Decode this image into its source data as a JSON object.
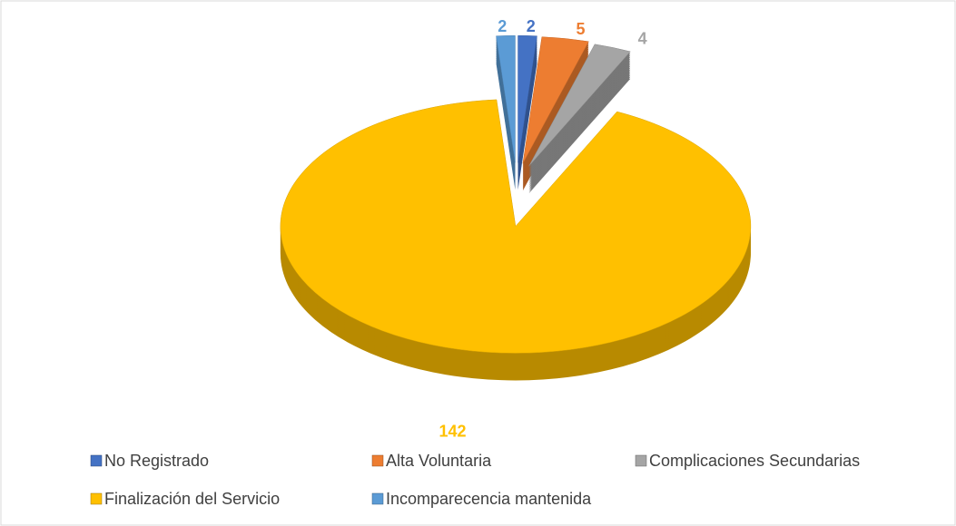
{
  "chart_data": {
    "type": "pie3d",
    "categories": [
      "No Registrado",
      "Alta Voluntaria",
      "Complicaciones Secundarias",
      "Finalización del Servicio",
      "Incomparecencia mantenida"
    ],
    "values": [
      2,
      5,
      4,
      142,
      2
    ],
    "colors": [
      "#4472c4",
      "#ed7d31",
      "#a5a5a5",
      "#ffc000",
      "#5b9bd5"
    ],
    "legend": "bottom"
  }
}
